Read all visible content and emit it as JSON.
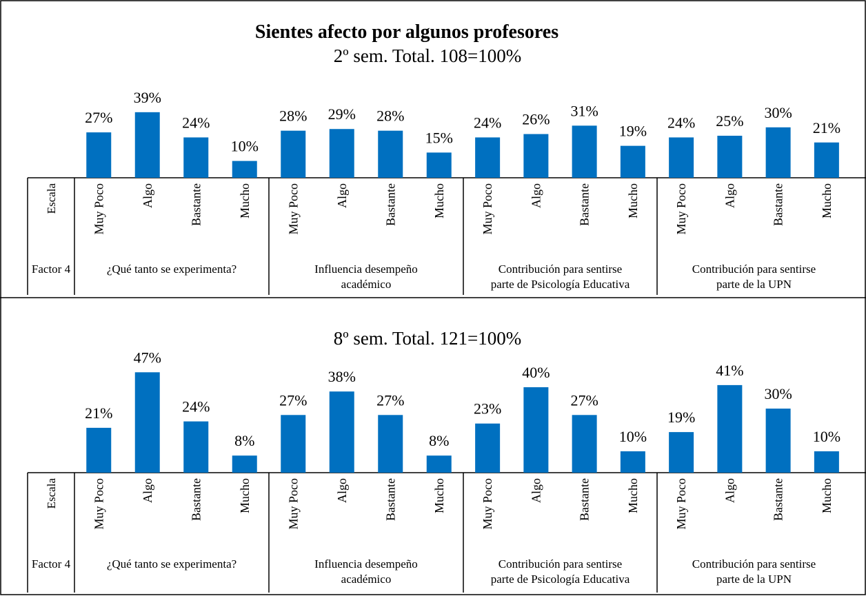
{
  "chart_data": [
    {
      "type": "bar",
      "title": "Sientes afecto por algunos profesores",
      "subtitle": "2º sem.  Total.  108=100%",
      "scale_label": "Escala",
      "factor_label": "Factor 4",
      "categories": [
        "Muy Poco",
        "Algo",
        "Bastante",
        "Mucho",
        "Muy Poco",
        "Algo",
        "Bastante",
        "Mucho",
        "Muy Poco",
        "Algo",
        "Bastante",
        "Mucho",
        "Muy Poco",
        "Algo",
        "Bastante",
        "Mucho"
      ],
      "groups": [
        "¿Qué tanto se experimenta?",
        "Influencia desempeño\nacadémico",
        "Contribución para sentirse\nparte de Psicología Educativa",
        "Contribución para sentirse\nparte de la UPN"
      ],
      "values": [
        27,
        39,
        24,
        10,
        28,
        29,
        28,
        15,
        24,
        26,
        31,
        19,
        24,
        25,
        30,
        21
      ],
      "value_labels": [
        "27%",
        "39%",
        "24%",
        "10%",
        "28%",
        "29%",
        "28%",
        "15%",
        "24%",
        "26%",
        "31%",
        "19%",
        "24%",
        "25%",
        "30%",
        "21%"
      ],
      "color": "#0070c0",
      "ylim": [
        0,
        50
      ]
    },
    {
      "type": "bar",
      "subtitle": "8º sem. Total.  121=100%",
      "scale_label": "Escala",
      "factor_label": "Factor 4",
      "categories": [
        "Muy Poco",
        "Algo",
        "Bastante",
        "Mucho",
        "Muy Poco",
        "Algo",
        "Bastante",
        "Mucho",
        "Muy Poco",
        "Algo",
        "Bastante",
        "Mucho",
        "Muy Poco",
        "Algo",
        "Bastante",
        "Mucho"
      ],
      "groups": [
        "¿Qué tanto se experimenta?",
        "Influencia desempeño\nacadémico",
        "Contribución para sentirse\nparte de Psicología Educativa",
        "Contribución para sentirse\nparte de la UPN"
      ],
      "values": [
        21,
        47,
        24,
        8,
        27,
        38,
        27,
        8,
        23,
        40,
        27,
        10,
        19,
        41,
        30,
        10
      ],
      "value_labels": [
        "21%",
        "47%",
        "24%",
        "8%",
        "27%",
        "38%",
        "27%",
        "8%",
        "23%",
        "40%",
        "27%",
        "10%",
        "19%",
        "41%",
        "30%",
        "10%"
      ],
      "color": "#0070c0",
      "ylim": [
        0,
        50
      ]
    }
  ]
}
